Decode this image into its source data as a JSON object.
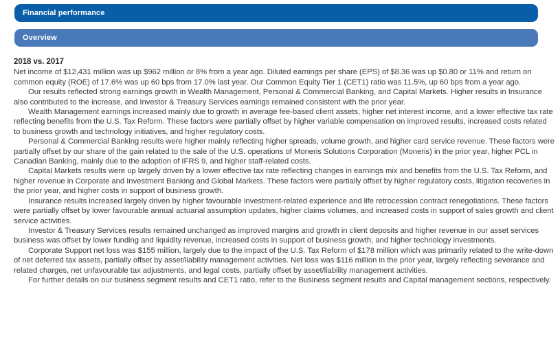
{
  "headers": {
    "primary": "Financial performance",
    "secondary": "Overview"
  },
  "colors": {
    "primary_bar": "#0a5da9",
    "secondary_bar": "#4a79b9",
    "bar_text": "#ffffff",
    "body_text": "#3b3b3b"
  },
  "content": {
    "heading": "2018 vs. 2017",
    "paragraphs": [
      "Net income of $12,431 million was up $962 million or 8% from a year ago. Diluted earnings per share (EPS) of $8.36 was up $0.80 or 11% and return on common equity (ROE) of 17.6% was up 60 bps from 17.0% last year. Our Common Equity Tier 1 (CET1) ratio was 11.5%, up 60 bps from a year ago.",
      "Our results reflected strong earnings growth in Wealth Management, Personal & Commercial Banking, and Capital Markets. Higher results in Insurance also contributed to the increase, and Investor & Treasury Services earnings remained consistent with the prior year.",
      "Wealth Management earnings increased mainly due to growth in average fee-based client assets, higher net interest income, and a lower effective tax rate reflecting benefits from the U.S. Tax Reform. These factors were partially offset by higher variable compensation on improved results, increased costs related to business growth and technology initiatives, and higher regulatory costs.",
      "Personal & Commercial Banking results were higher mainly reflecting higher spreads, volume growth, and higher card service revenue. These factors were partially offset by our share of the gain related to the sale of the U.S. operations of Moneris Solutions Corporation (Moneris) in the prior year, higher PCL in Canadian Banking, mainly due to the adoption of IFRS 9, and higher staff-related costs.",
      "Capital Markets results were up largely driven by a lower effective tax rate reflecting changes in earnings mix and benefits from the U.S. Tax Reform, and higher revenue in Corporate and Investment Banking and Global Markets. These factors were partially offset by higher regulatory costs, litigation recoveries in the prior year, and higher costs in support of business growth.",
      "Insurance results increased largely driven by higher favourable investment-related experience and life retrocession contract renegotiations. These factors were partially offset by lower favourable annual actuarial assumption updates, higher claims volumes, and increased costs in support of sales growth and client service activities.",
      "Investor & Treasury Services results remained unchanged as improved margins and growth in client deposits and higher revenue in our asset services business was offset by lower funding and liquidity revenue, increased costs in support of business growth, and higher technology investments.",
      "Corporate Support net loss was $155 million, largely due to the impact of the U.S. Tax Reform of $178 million which was primarily related to the write-down of net deferred tax assets, partially offset by asset/liability management activities. Net loss was $116 million in the prior year, largely reflecting severance and related charges, net unfavourable tax adjustments, and legal costs, partially offset by asset/liability management activities.",
      "For further details on our business segment results and CET1 ratio, refer to the Business segment results and Capital management sections, respectively."
    ]
  }
}
